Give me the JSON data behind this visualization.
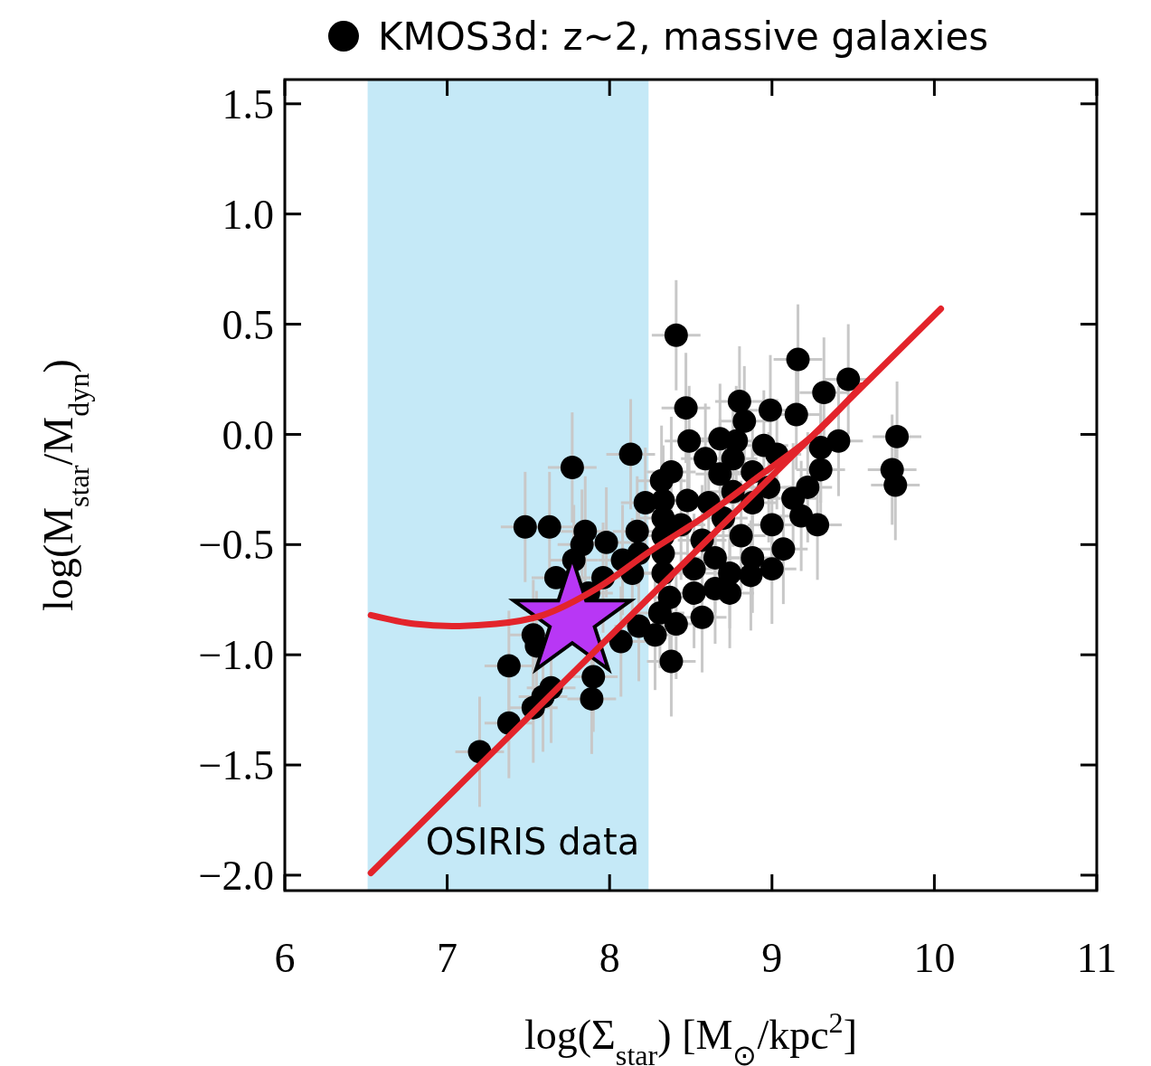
{
  "chart_data": {
    "type": "scatter",
    "xlabel": "log(Σ$_{star}$) [M$_{⊙}$/kpc$^{2}$]",
    "ylabel": "log(M$_{star}$/M$_{dyn}$)",
    "xlim": [
      6,
      11
    ],
    "ylim": [
      -2.07,
      1.61
    ],
    "xticks": [
      6,
      7,
      8,
      9,
      10,
      11
    ],
    "yticks": [
      {
        "value": 1.5,
        "label": "1.5"
      },
      {
        "value": 1,
        "label": "1.0"
      },
      {
        "value": 0.5,
        "label": "0.5"
      },
      {
        "value": 0,
        "label": "0.0"
      },
      {
        "value": -0.5,
        "label": "−0.5"
      },
      {
        "value": -1,
        "label": "−1.0"
      },
      {
        "value": -1.5,
        "label": "−1.5"
      },
      {
        "value": -2,
        "label": "−2.0"
      }
    ],
    "grid": false,
    "legend": "top",
    "bands": [
      {
        "axis": "x",
        "from": 6.51,
        "to": 8.24,
        "label": "OSIRIS data",
        "color": "#c5e9f7"
      }
    ],
    "series": [
      {
        "name": "KMOS3d: z~2, massive galaxies",
        "color": "#000000",
        "marker": "circle",
        "x": [
          8.41,
          9.16,
          9.47,
          9.32,
          8.47,
          8.8,
          8.99,
          9.15,
          8.83,
          9.77,
          8.49,
          8.68,
          8.78,
          8.95,
          9.03,
          9.3,
          9.41,
          8.59,
          8.76,
          8.88,
          9.3,
          9.74,
          9.76,
          8.38,
          8.32,
          8.68,
          9.22,
          8.76,
          8.98,
          8.48,
          8.33,
          8.61,
          8.88,
          9.13,
          9.18,
          9.28,
          8.33,
          8.44,
          8.7,
          9.0,
          8.33,
          8.57,
          8.81,
          9.07,
          8.33,
          8.65,
          8.88,
          9.0,
          8.33,
          8.52,
          8.74,
          8.65,
          8.74,
          8.87,
          8.37,
          8.52,
          8.57,
          8.41,
          8.31,
          8.28,
          8.38,
          8.13,
          7.77,
          7.63,
          7.85,
          7.98,
          8.17,
          8.22,
          7.83,
          7.78,
          8.08,
          8.18,
          7.67,
          7.96,
          8.14,
          7.87,
          7.53,
          7.55,
          8.07,
          8.18,
          7.38,
          7.9,
          7.89,
          7.59,
          7.53,
          7.2,
          7.38,
          7.48,
          7.64
        ],
        "values": [
          0.45,
          0.34,
          0.25,
          0.19,
          0.12,
          0.15,
          0.11,
          0.09,
          0.06,
          -0.01,
          -0.03,
          -0.02,
          -0.03,
          -0.05,
          -0.09,
          -0.06,
          -0.03,
          -0.11,
          -0.11,
          -0.17,
          -0.16,
          -0.16,
          -0.23,
          -0.17,
          -0.21,
          -0.18,
          -0.24,
          -0.26,
          -0.24,
          -0.3,
          -0.3,
          -0.31,
          -0.31,
          -0.29,
          -0.37,
          -0.41,
          -0.38,
          -0.41,
          -0.38,
          -0.41,
          -0.46,
          -0.48,
          -0.46,
          -0.52,
          -0.54,
          -0.56,
          -0.56,
          -0.61,
          -0.63,
          -0.61,
          -0.63,
          -0.7,
          -0.72,
          -0.64,
          -0.74,
          -0.72,
          -0.83,
          -0.86,
          -0.81,
          -0.91,
          -1.03,
          -0.09,
          -0.15,
          -0.42,
          -0.44,
          -0.49,
          -0.44,
          -0.31,
          -0.5,
          -0.57,
          -0.57,
          -0.54,
          -0.65,
          -0.65,
          -0.63,
          -0.72,
          -0.91,
          -0.96,
          -0.94,
          -0.87,
          -1.05,
          -1.1,
          -1.2,
          -1.19,
          -1.24,
          -1.44,
          -1.31,
          -0.42,
          -1.15
        ],
        "errors": [
          0.25,
          0.25,
          0.25,
          0.25,
          0.25,
          0.25,
          0.25,
          0.25,
          0.25,
          0.25,
          0.25,
          0.25,
          0.25,
          0.25,
          0.25,
          0.25,
          0.25,
          0.25,
          0.25,
          0.25,
          0.25,
          0.25,
          0.25,
          0.25,
          0.25,
          0.25,
          0.25,
          0.25,
          0.25,
          0.25,
          0.25,
          0.25,
          0.25,
          0.25,
          0.25,
          0.25,
          0.25,
          0.25,
          0.25,
          0.25,
          0.25,
          0.25,
          0.25,
          0.25,
          0.25,
          0.25,
          0.25,
          0.25,
          0.25,
          0.25,
          0.25,
          0.25,
          0.25,
          0.25,
          0.25,
          0.25,
          0.25,
          0.25,
          0.25,
          0.25,
          0.25,
          0.25,
          0.25,
          0.25,
          0.25,
          0.25,
          0.25,
          0.25,
          0.25,
          0.25,
          0.25,
          0.25,
          null,
          0.25,
          0.25,
          null,
          0.25,
          0.25,
          0.25,
          0.25,
          0.25,
          0.25,
          0.25,
          0.25,
          0.25,
          0.25,
          0.25,
          0.25,
          0.25
        ],
        "xerrors": [
          0.15,
          0.15,
          0.15,
          0.15,
          0.15,
          0.15,
          0.15,
          0.15,
          0.15,
          0.15,
          0.15,
          0.15,
          0.15,
          0.15,
          0.15,
          0.15,
          0.15,
          0.15,
          0.15,
          0.15,
          0.15,
          0.15,
          0.15,
          0.15,
          0.15,
          0.15,
          0.15,
          0.15,
          0.15,
          0.15,
          0.15,
          0.15,
          0.15,
          0.15,
          0.15,
          0.15,
          0.15,
          0.15,
          0.15,
          0.15,
          0.15,
          0.15,
          0.15,
          0.15,
          0.15,
          0.15,
          0.15,
          0.15,
          0.15,
          0.15,
          0.15,
          0.15,
          0.15,
          0.15,
          0.15,
          0.15,
          0.15,
          0.15,
          0.15,
          0.15,
          0.15,
          0.15,
          0.15,
          0.15,
          0.15,
          0.15,
          0.15,
          0.15,
          0.15,
          0.15,
          0.15,
          0.15,
          0.15,
          0.15,
          0.15,
          0.15,
          0.15,
          null,
          0.15,
          0.15,
          0.15,
          0.15,
          0.15,
          0.15,
          0.15,
          0.15,
          0.15,
          0.15,
          0.15
        ]
      },
      {
        "type": "line",
        "color": "#e3242b",
        "line_style": "solid",
        "x": [
          6.53,
          10.04
        ],
        "values": [
          -1.99,
          0.57
        ]
      },
      {
        "type": "line",
        "color": "#e3242b",
        "line_style": "solid",
        "x": [
          6.53,
          6.8,
          7.03,
          7.3,
          7.59,
          7.92,
          8.25,
          8.59,
          8.92,
          9.26,
          9.55
        ],
        "values": [
          -0.82,
          -0.86,
          -0.87,
          -0.86,
          -0.82,
          -0.7,
          -0.53,
          -0.37,
          -0.19,
          0.0,
          0.22
        ]
      },
      {
        "type": "scatter",
        "color": "#b837f5",
        "marker": "star",
        "x": [
          7.77
        ],
        "values": [
          -0.84
        ]
      }
    ]
  }
}
